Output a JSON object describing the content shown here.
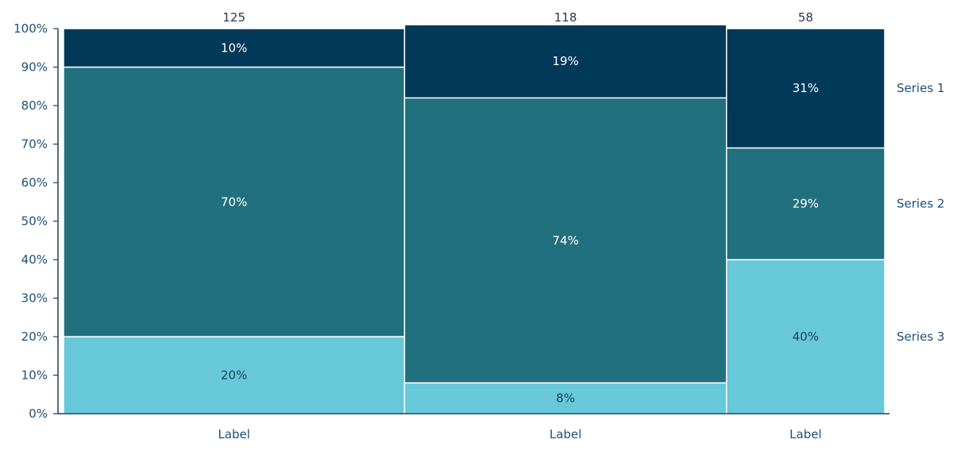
{
  "chart_data": {
    "type": "mekko",
    "categories": [
      "Label",
      "Label",
      "Label"
    ],
    "totals": [
      125,
      118,
      58
    ],
    "series": [
      {
        "name": "Series 1",
        "color": "#023858",
        "label_color": "#ffffff",
        "values": [
          10,
          19,
          31
        ]
      },
      {
        "name": "Series 2",
        "color": "#20707e",
        "label_color": "#ffffff",
        "values": [
          70,
          74,
          29
        ]
      },
      {
        "name": "Series 3",
        "color": "#67c8d9",
        "label_color": "#1b3f5a",
        "values": [
          20,
          8,
          40
        ]
      }
    ],
    "data_labels": [
      [
        "10%",
        "19%",
        "31%"
      ],
      [
        "70%",
        "74%",
        "29%"
      ],
      [
        "20%",
        "8%",
        "40%"
      ]
    ],
    "y_ticks": [
      "0%",
      "10%",
      "20%",
      "30%",
      "40%",
      "50%",
      "60%",
      "70%",
      "80%",
      "90%",
      "100%"
    ],
    "ylim": [
      0,
      100
    ],
    "legend_position": "right",
    "grid": false
  }
}
